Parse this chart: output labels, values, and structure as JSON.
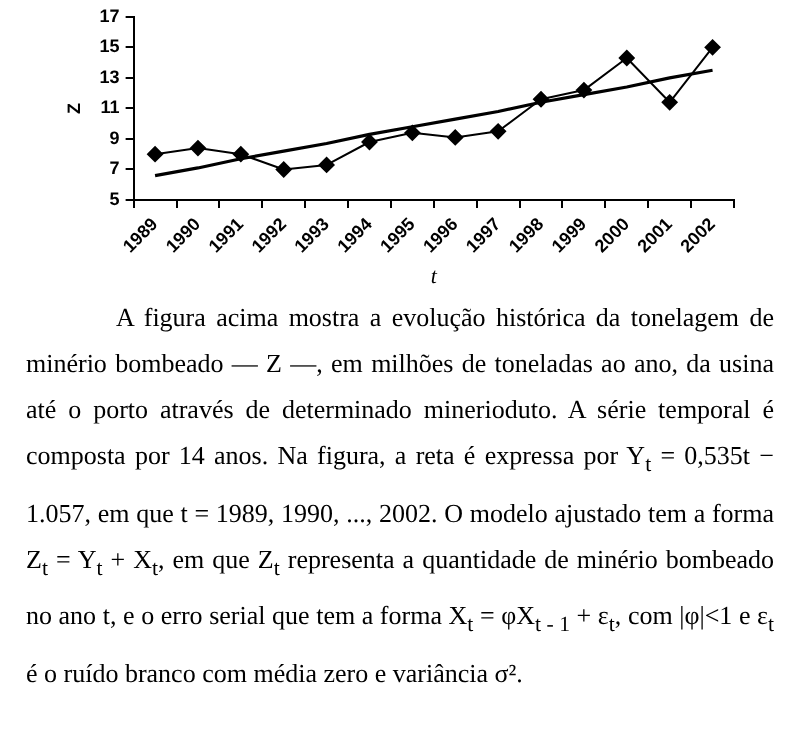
{
  "chart_data": {
    "type": "line",
    "xlabel": "t",
    "ylabel": "Z",
    "categories": [
      "1989",
      "1990",
      "1991",
      "1992",
      "1993",
      "1994",
      "1995",
      "1996",
      "1997",
      "1998",
      "1999",
      "2000",
      "2001",
      "2002"
    ],
    "series": [
      {
        "color": "#000000",
        "values": [
          8.0,
          8.4,
          8.0,
          7.0,
          7.3,
          8.8,
          9.4,
          9.1,
          9.5,
          11.6,
          12.2,
          14.3,
          11.4,
          15.0
        ]
      },
      {
        "type": "line",
        "color": "#000000",
        "values": [
          6.6,
          7.1,
          7.7,
          8.2,
          8.7,
          9.3,
          9.8,
          10.3,
          10.8,
          11.4,
          11.9,
          12.4,
          13.0,
          13.5
        ],
        "marker": "none"
      }
    ],
    "ylim": [
      5,
      17
    ],
    "yticks": [
      5,
      7,
      9,
      11,
      13,
      15,
      17
    ],
    "grid": false,
    "legend": false,
    "marker": "diamond",
    "line_style": "solid",
    "annotations": [
      "A figura acima mostra a evolução histórica da tonelagem de minério bombeado — Z —, em milhões de toneladas ao ano, da usina até o porto através de determinado minerioduto. A série temporal é composta por 14 anos. Na figura, a reta é expressa por Y$_{t}$ = 0,535t − 1.057, em que t = 1989, 1990, ..., 2002. O modelo ajustado tem a forma Z$_{t}$ = Y$_{t}$ + X$_{t}$, em que Z$_{t}$ representa a quantidade de minério bombeado no ano t, e o erro serial que tem a forma X$_{t}$ = φX$_{t - 1}$ + ε$_{t}$, com |φ|<1 e ε$_{t}$ é o ruído branco com média zero e variância σ²."
    ]
  }
}
